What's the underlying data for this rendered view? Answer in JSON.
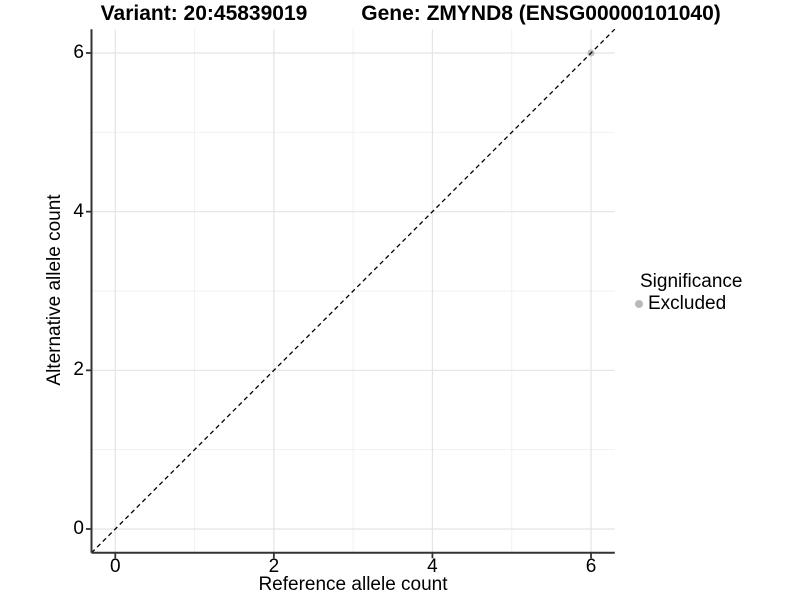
{
  "header": {
    "variant_title": "Variant: 20:45839019",
    "gene_title": "Gene: ZMYND8 (ENSG00000101040)"
  },
  "axes": {
    "x_title": "Reference allele count",
    "y_title": "Alternative allele count"
  },
  "legend": {
    "title": "Significance",
    "items": [
      {
        "label": "Excluded",
        "color": "#b9b9b9"
      }
    ]
  },
  "chart_data": {
    "type": "scatter",
    "title": "Variant: 20:45839019 / Gene: ZMYND8 (ENSG00000101040)",
    "xlabel": "Reference allele count",
    "ylabel": "Alternative allele count",
    "xlim": [
      0,
      6
    ],
    "ylim": [
      0,
      6
    ],
    "x_major_ticks": [
      0,
      2,
      4,
      6
    ],
    "y_major_ticks": [
      0,
      2,
      4,
      6
    ],
    "x_minor_ticks": [
      1,
      3,
      5
    ],
    "y_minor_ticks": [
      1,
      3,
      5
    ],
    "expansion": 0.05,
    "grid": true,
    "legend_position": "right",
    "series": [
      {
        "name": "Excluded",
        "color": "#bfbfbf",
        "points": [
          {
            "x": 6,
            "y": 6
          }
        ]
      }
    ],
    "reference_line": {
      "type": "identity",
      "slope": 1,
      "intercept": 0,
      "style": "dashed",
      "color": "#000000"
    }
  },
  "style": {
    "background": "#ffffff",
    "text_color": "#000000",
    "axis_line_color": "#333333",
    "tick_color": "#333333",
    "major_grid_color": "#e4e4e4",
    "minor_grid_color": "#f1f1f1"
  }
}
